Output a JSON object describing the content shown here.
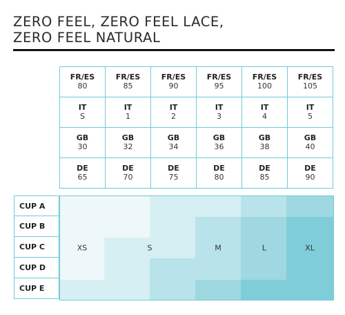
{
  "title_lines": [
    "ZERO FEEL, ZERO FEEL LACE,",
    "ZERO FEEL NATURAL"
  ],
  "rows": [
    {
      "label": "FR/ES",
      "values": [
        "80",
        "85",
        "90",
        "95",
        "100",
        "105"
      ]
    },
    {
      "label": "IT",
      "values": [
        "S",
        "1",
        "2",
        "3",
        "4",
        "5"
      ]
    },
    {
      "label": "GB",
      "values": [
        "30",
        "32",
        "34",
        "36",
        "38",
        "40"
      ]
    },
    {
      "label": "DE",
      "values": [
        "65",
        "70",
        "75",
        "80",
        "85",
        "90"
      ]
    }
  ],
  "cups": [
    "CUP A",
    "CUP B",
    "CUP C",
    "CUP D",
    "CUP E"
  ],
  "sizes": [
    "XS",
    "S",
    "M",
    "L",
    "XL"
  ],
  "colors": {
    "xs": "#eef8fa",
    "s": "#d6eff3",
    "m": "#b9e3ea",
    "l": "#9fd8e1",
    "xl": "#7fcdd9",
    "border": "#6fcad6"
  }
}
